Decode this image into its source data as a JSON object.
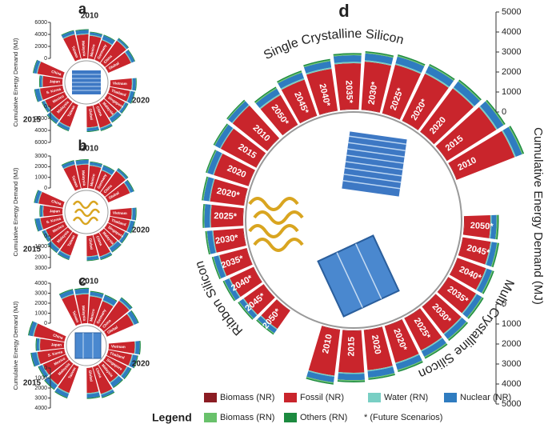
{
  "chart_data": [
    {
      "type": "radial_bar",
      "title": "a",
      "axis_label": "Cumulative Energy Demand (MJ)",
      "ylim": [
        0,
        6000
      ],
      "yticks": [
        0,
        2000,
        4000,
        6000
      ],
      "colors": [
        "#c9252c",
        "#79cfc4",
        "#2f7cc0",
        "#1c8a3f"
      ],
      "groups": [
        {
          "name": "2010",
          "categories": [
            "Taiwan",
            "Malaysia",
            "Mexico",
            "Germany",
            "China",
            "Global"
          ],
          "values": [
            [
              4200,
              4000,
              3800,
              3500,
              4600,
              4100
            ],
            [
              150,
              150,
              150,
              150,
              150,
              150
            ],
            [
              500,
              600,
              400,
              700,
              300,
              500
            ],
            [
              120,
              120,
              120,
              120,
              120,
              120
            ]
          ]
        },
        {
          "name": "2020",
          "categories": [
            "Vietnam",
            "Thailand",
            "Singapore",
            "Malaysia",
            "China",
            "Global"
          ],
          "values": [
            [
              3600,
              3400,
              3200,
              3000,
              3900,
              3500
            ],
            [
              150,
              150,
              150,
              150,
              150,
              150
            ],
            [
              500,
              600,
              400,
              700,
              300,
              500
            ],
            [
              120,
              120,
              120,
              120,
              120,
              120
            ]
          ]
        },
        {
          "name": "2015",
          "categories": [
            "Taiwan",
            "Malaysia",
            "Mexico",
            "S. Korea",
            "Japan",
            "China"
          ],
          "values": [
            [
              3900,
              3700,
              3500,
              3800,
              3300,
              4300
            ],
            [
              150,
              150,
              150,
              150,
              150,
              150
            ],
            [
              500,
              600,
              400,
              700,
              300,
              500
            ],
            [
              120,
              120,
              120,
              120,
              120,
              120
            ]
          ]
        }
      ]
    },
    {
      "type": "radial_bar",
      "title": "b",
      "axis_label": "Cumulative Energy Demand (MJ)",
      "ylim": [
        0,
        3000
      ],
      "yticks": [
        0,
        1000,
        2000,
        3000
      ],
      "colors": [
        "#c9252c",
        "#79cfc4",
        "#2f7cc0",
        "#1c8a3f"
      ],
      "groups": [
        {
          "name": "2010",
          "categories": [
            "Taiwan",
            "Malaysia",
            "Mexico",
            "Germany",
            "China",
            "Global"
          ],
          "values": [
            [
              2300,
              2200,
              2100,
              1900,
              2500,
              2200
            ],
            [
              80,
              80,
              80,
              80,
              80,
              80
            ],
            [
              300,
              350,
              250,
              400,
              200,
              300
            ],
            [
              70,
              70,
              70,
              70,
              70,
              70
            ]
          ]
        },
        {
          "name": "2020",
          "categories": [
            "Vietnam",
            "Thailand",
            "Singapore",
            "Malaysia",
            "China",
            "Global"
          ],
          "values": [
            [
              2000,
              1900,
              1800,
              1700,
              2100,
              1900
            ],
            [
              80,
              80,
              80,
              80,
              80,
              80
            ],
            [
              300,
              350,
              250,
              400,
              200,
              300
            ],
            [
              70,
              70,
              70,
              70,
              70,
              70
            ]
          ]
        },
        {
          "name": "2015",
          "categories": [
            "Taiwan",
            "Malaysia",
            "Mexico",
            "S. Korea",
            "Japan",
            "China"
          ],
          "values": [
            [
              2100,
              2000,
              1900,
              2100,
              1800,
              2300
            ],
            [
              80,
              80,
              80,
              80,
              80,
              80
            ],
            [
              300,
              350,
              250,
              400,
              200,
              300
            ],
            [
              70,
              70,
              70,
              70,
              70,
              70
            ]
          ]
        }
      ]
    },
    {
      "type": "radial_bar",
      "title": "c",
      "axis_label": "Cumulative Energy Demand (MJ)",
      "ylim": [
        0,
        4000
      ],
      "yticks": [
        0,
        1000,
        2000,
        3000,
        4000
      ],
      "colors": [
        "#c9252c",
        "#79cfc4",
        "#2f7cc0",
        "#1c8a3f"
      ],
      "groups": [
        {
          "name": "2010",
          "categories": [
            "Taiwan",
            "Malaysia",
            "Mexico",
            "Germany",
            "China",
            "Global"
          ],
          "values": [
            [
              3000,
              2900,
              2700,
              2500,
              3300,
              2900
            ],
            [
              100,
              100,
              100,
              100,
              100,
              100
            ],
            [
              400,
              450,
              350,
              500,
              250,
              400
            ],
            [
              90,
              90,
              90,
              90,
              90,
              90
            ]
          ]
        },
        {
          "name": "2020",
          "categories": [
            "Vietnam",
            "Thailand",
            "Singapore",
            "Malaysia",
            "China",
            "Global"
          ],
          "values": [
            [
              2600,
              2400,
              2300,
              2100,
              2800,
              2500
            ],
            [
              100,
              100,
              100,
              100,
              100,
              100
            ],
            [
              400,
              450,
              350,
              500,
              250,
              400
            ],
            [
              90,
              90,
              90,
              90,
              90,
              90
            ]
          ]
        },
        {
          "name": "2015",
          "categories": [
            "Taiwan",
            "Malaysia",
            "Mexico",
            "S. Korea",
            "Japan",
            "China"
          ],
          "values": [
            [
              2800,
              2600,
              2500,
              2700,
              2400,
              3100
            ],
            [
              100,
              100,
              100,
              100,
              100,
              100
            ],
            [
              400,
              450,
              350,
              500,
              250,
              400
            ],
            [
              90,
              90,
              90,
              90,
              90,
              90
            ]
          ]
        }
      ]
    },
    {
      "type": "radial_bar",
      "title": "d",
      "axis_label": "Cumulative Energy Demand (MJ)",
      "ylim": [
        0,
        5000
      ],
      "yticks": [
        0,
        1000,
        2000,
        3000,
        4000,
        5000
      ],
      "legend_title": "Legend",
      "note": "* (Future Scenarios)",
      "series": [
        {
          "name": "Biomass (NR)",
          "color": "#8b1c23"
        },
        {
          "name": "Fossil (NR)",
          "color": "#c9252c"
        },
        {
          "name": "Water (RN)",
          "color": "#79cfc4"
        },
        {
          "name": "Nuclear (NR)",
          "color": "#2f7cc0"
        },
        {
          "name": "Biomass (RN)",
          "color": "#69c16b"
        },
        {
          "name": "Others (RN)",
          "color": "#1c8a3f"
        }
      ],
      "groups": [
        {
          "name": "Single Crystalline Silicon",
          "categories": [
            "2050*",
            "2045*",
            "2040*",
            "2035*",
            "2030*",
            "2025*",
            "2020*",
            "2020",
            "2015",
            "2010"
          ],
          "values": [
            [
              20,
              20,
              20,
              20,
              20,
              20,
              20,
              20,
              20,
              20
            ],
            [
              1700,
              1900,
              2100,
              2300,
              2400,
              2500,
              2600,
              2700,
              2900,
              3100
            ],
            [
              70,
              70,
              70,
              70,
              70,
              70,
              70,
              70,
              70,
              70
            ],
            [
              300,
              300,
              320,
              330,
              340,
              350,
              360,
              370,
              360,
              330
            ],
            [
              50,
              50,
              50,
              50,
              50,
              50,
              50,
              50,
              50,
              50
            ],
            [
              60,
              60,
              60,
              60,
              60,
              60,
              60,
              60,
              60,
              60
            ]
          ]
        },
        {
          "name": "Multi Crystalline Silicon",
          "categories": [
            "2050*",
            "2045*",
            "2040*",
            "2035*",
            "2030*",
            "2025*",
            "2020*",
            "2020",
            "2015",
            "2010"
          ],
          "values": [
            [
              20,
              20,
              20,
              20,
              20,
              20,
              20,
              20,
              20,
              20
            ],
            [
              1300,
              1400,
              1500,
              1600,
              1700,
              1800,
              1900,
              2000,
              2100,
              2300
            ],
            [
              60,
              60,
              60,
              60,
              60,
              60,
              60,
              60,
              60,
              60
            ],
            [
              250,
              260,
              270,
              280,
              290,
              300,
              310,
              320,
              310,
              280
            ],
            [
              50,
              50,
              50,
              50,
              50,
              50,
              50,
              50,
              50,
              50
            ],
            [
              60,
              60,
              60,
              60,
              60,
              60,
              60,
              60,
              60,
              60
            ]
          ]
        },
        {
          "name": "Ribbon Silicon",
          "categories": [
            "2050*",
            "2045*",
            "2040*",
            "2035*",
            "2030*",
            "2025*",
            "2020*",
            "2020",
            "2015",
            "2010"
          ],
          "values": [
            [
              20,
              20,
              20,
              20,
              20,
              20,
              20,
              20,
              20,
              20
            ],
            [
              1100,
              1200,
              1300,
              1400,
              1500,
              1600,
              1700,
              1800,
              2000,
              2200
            ],
            [
              50,
              50,
              50,
              50,
              50,
              50,
              50,
              50,
              50,
              50
            ],
            [
              220,
              230,
              240,
              250,
              260,
              270,
              280,
              290,
              280,
              250
            ],
            [
              40,
              40,
              40,
              40,
              40,
              40,
              40,
              40,
              40,
              40
            ],
            [
              50,
              50,
              50,
              50,
              50,
              50,
              50,
              50,
              50,
              50
            ]
          ]
        }
      ]
    }
  ]
}
